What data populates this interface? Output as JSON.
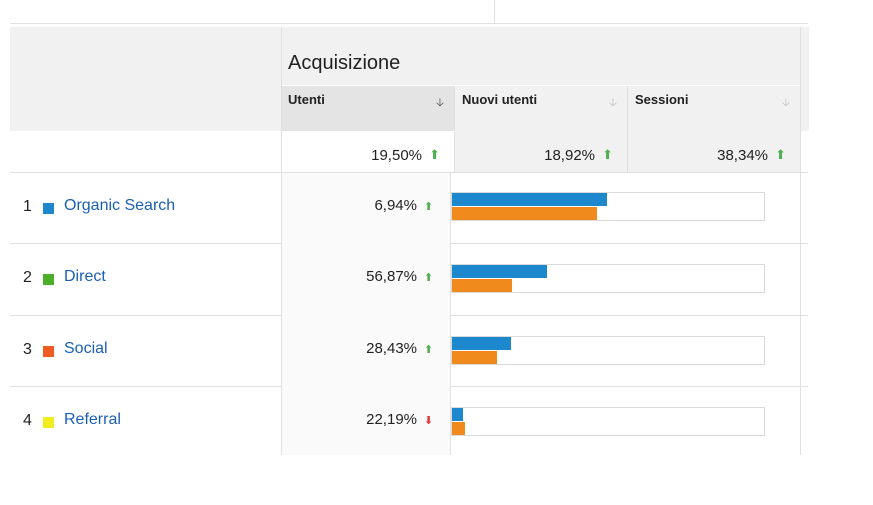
{
  "table": {
    "group_title": "Acquisizione",
    "columns": [
      {
        "label": "Utenti",
        "sorted": true
      },
      {
        "label": "Nuovi utenti",
        "sorted": false
      },
      {
        "label": "Sessioni",
        "sorted": false
      }
    ],
    "totals": [
      {
        "value": "19,50%",
        "trend": "up"
      },
      {
        "value": "18,92%",
        "trend": "up"
      },
      {
        "value": "38,34%",
        "trend": "up"
      }
    ],
    "rows": [
      {
        "num": "1",
        "channel": "Organic Search",
        "color": "#1e88cf",
        "pct": "6,94%",
        "trend": "up",
        "bar_blue_fraction": 0.49,
        "bar_orange_fraction": 0.46
      },
      {
        "num": "2",
        "channel": "Direct",
        "color": "#4caf28",
        "pct": "56,87%",
        "trend": "up",
        "bar_blue_fraction": 0.3,
        "bar_orange_fraction": 0.19
      },
      {
        "num": "3",
        "channel": "Social",
        "color": "#ef5c22",
        "pct": "28,43%",
        "trend": "up",
        "bar_blue_fraction": 0.19,
        "bar_orange_fraction": 0.14
      },
      {
        "num": "4",
        "channel": "Referral",
        "color": "#f2ec1e",
        "pct": "22,19%",
        "trend": "down",
        "bar_blue_fraction": 0.035,
        "bar_orange_fraction": 0.04
      }
    ],
    "bar_colors": {
      "primary": "#1e88cf",
      "secondary": "#f08a1c"
    },
    "trend_colors": {
      "up": "#4caf50",
      "down": "#e53935"
    }
  }
}
